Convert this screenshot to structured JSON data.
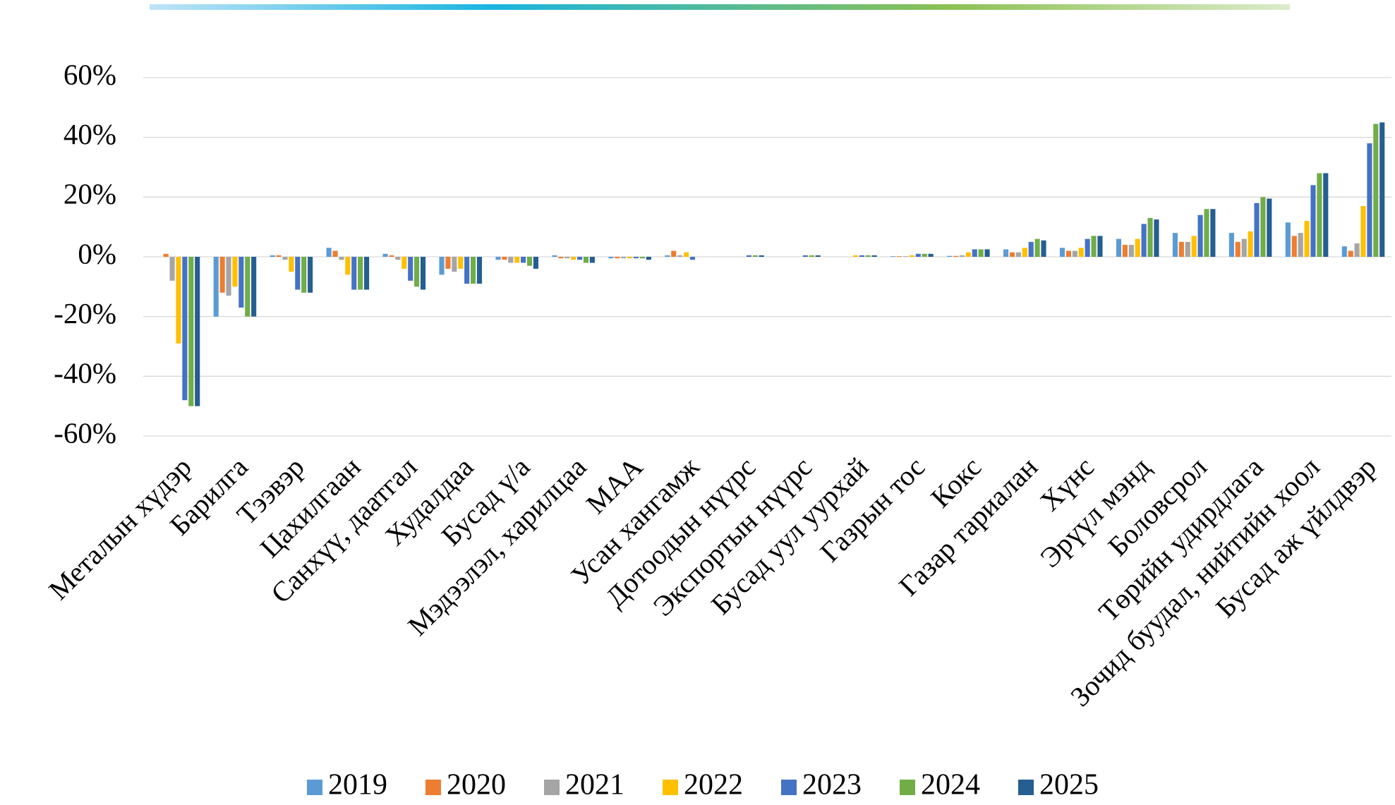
{
  "chart_data": {
    "type": "bar",
    "categories": [
      "Металын хүдэр",
      "Барилга",
      "Тээвэр",
      "Цахилгаан",
      "Санхүү, даатгал",
      "Худалдаа",
      "Бусад ү/а",
      "Мэдээлэл, харилцаа",
      "МАА",
      "Усан хангамж",
      "Дотоодын нүүрс",
      "Экспортын нүүрс",
      "Бусад уул уурхай",
      "Газрын тос",
      "Кокс",
      "Газар тариалан",
      "Хүнс",
      "Эрүүл мэнд",
      "Боловсрол",
      "Төрийн удирдлага",
      "Зочид буудал, нийтийн хоол",
      "Бусад аж үйлдвэр"
    ],
    "series": [
      {
        "name": "2019",
        "color": "#5b9bd5",
        "values": [
          0,
          -20,
          0.5,
          3,
          1,
          -6,
          -1,
          0.5,
          -0.5,
          0.5,
          0,
          0,
          0,
          0.2,
          0.3,
          2.5,
          3,
          6,
          8,
          8,
          11.5,
          3.5
        ]
      },
      {
        "name": "2020",
        "color": "#ed7d31",
        "values": [
          1,
          -12,
          0.5,
          2,
          0.5,
          -4,
          -1,
          -0.5,
          -0.5,
          2,
          0,
          0,
          0,
          0.2,
          0.3,
          1.5,
          2,
          4,
          5,
          5,
          7,
          2
        ]
      },
      {
        "name": "2021",
        "color": "#a5a5a5",
        "values": [
          -8,
          -13,
          -1,
          -1,
          -1,
          -5,
          -2,
          -0.5,
          -0.5,
          0.5,
          0,
          0,
          0,
          0.2,
          0.5,
          1.5,
          2,
          4,
          5,
          6,
          8,
          4.5
        ]
      },
      {
        "name": "2022",
        "color": "#ffc000",
        "values": [
          -29,
          -10,
          -5,
          -6,
          -4,
          -4,
          -2,
          -1,
          -0.5,
          1.5,
          0,
          0,
          0.5,
          0.5,
          1.5,
          3,
          3,
          6,
          7,
          8.5,
          12,
          17
        ]
      },
      {
        "name": "2023",
        "color": "#4472c4",
        "values": [
          -48,
          -17,
          -11,
          -11,
          -8,
          -9,
          -2,
          -1,
          -0.5,
          -1,
          0.5,
          0.5,
          0.5,
          1,
          2.5,
          5,
          6,
          11,
          14,
          18,
          24,
          38
        ]
      },
      {
        "name": "2024",
        "color": "#70ad47",
        "values": [
          -50,
          -20,
          -12,
          -11,
          -10,
          -9,
          -3,
          -2,
          -0.5,
          0,
          0.5,
          0.5,
          0.5,
          1,
          2.5,
          6,
          7,
          13,
          16,
          20,
          28,
          44.5
        ]
      },
      {
        "name": "2025",
        "color": "#255e91",
        "values": [
          -50,
          -20,
          -12,
          -11,
          -11,
          -9,
          -4,
          -2,
          -1,
          0,
          0.5,
          0.5,
          0.5,
          1,
          2.5,
          5.5,
          7,
          12.5,
          16,
          19.5,
          28,
          45
        ]
      }
    ],
    "ylim": [
      -60,
      60
    ],
    "yticks": [
      {
        "value": -60,
        "label": "-60%"
      },
      {
        "value": -40,
        "label": "-40%"
      },
      {
        "value": -20,
        "label": "-20%"
      },
      {
        "value": 0,
        "label": "0%"
      },
      {
        "value": 20,
        "label": "20%"
      },
      {
        "value": 40,
        "label": "40%"
      },
      {
        "value": 60,
        "label": "60%"
      }
    ],
    "grid": true,
    "legend": "bottom"
  }
}
